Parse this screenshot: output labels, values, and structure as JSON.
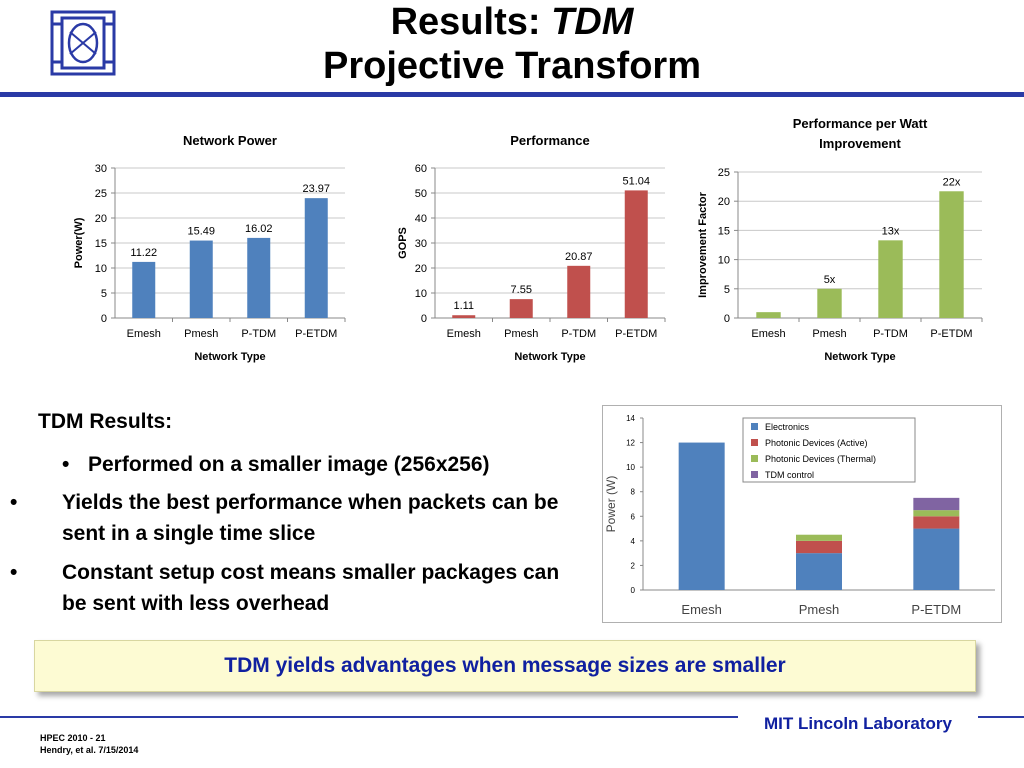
{
  "slide": {
    "title_prefix": "Results: ",
    "title_em": "TDM",
    "title_line2": "Projective Transform",
    "section_heading": "TDM Results:",
    "bullets": [
      "Performed on a smaller image (256x256)",
      "Yields the best performance when packets can be sent in a single time slice",
      "Constant setup cost means smaller packages can be sent with less overhead"
    ],
    "callout": "TDM yields advantages when message sizes are smaller",
    "footer_left_line1": "HPEC 2010 - 21",
    "footer_left_line2": "Hendry, et al. 7/15/2014",
    "footer_right": "MIT Lincoln Laboratory",
    "colors": {
      "accent": "#2a3aa6",
      "callout_text": "#1020a0",
      "callout_bg": "#fdfbd3"
    }
  },
  "chart_data": [
    {
      "type": "bar",
      "title": "Network Power",
      "xlabel": "Network Type",
      "ylabel": "Power(W)",
      "categories": [
        "Emesh",
        "Pmesh",
        "P-TDM",
        "P-ETDM"
      ],
      "values": [
        11.22,
        15.49,
        16.02,
        23.97
      ],
      "data_labels": [
        "11.22",
        "15.49",
        "16.02",
        "23.97"
      ],
      "ylim": [
        0,
        30
      ],
      "yticks": [
        0,
        5,
        10,
        15,
        20,
        25,
        30
      ],
      "color": "#4f81bd",
      "grid": true
    },
    {
      "type": "bar",
      "title": "Performance",
      "xlabel": "Network Type",
      "ylabel": "GOPS",
      "categories": [
        "Emesh",
        "Pmesh",
        "P-TDM",
        "P-ETDM"
      ],
      "values": [
        1.11,
        7.55,
        20.87,
        51.04
      ],
      "data_labels": [
        "1.11",
        "7.55",
        "20.87",
        "51.04"
      ],
      "ylim": [
        0,
        60
      ],
      "yticks": [
        0,
        10,
        20,
        30,
        40,
        50,
        60
      ],
      "color": "#c0504d",
      "grid": true
    },
    {
      "type": "bar",
      "title_lines": [
        "Performance per Watt",
        "Improvement"
      ],
      "xlabel": "Network Type",
      "ylabel": "Improvement Factor",
      "categories": [
        "Emesh",
        "Pmesh",
        "P-TDM",
        "P-ETDM"
      ],
      "values": [
        1,
        5,
        13.3,
        21.7
      ],
      "data_labels": [
        "",
        "5x",
        "13x",
        "22x"
      ],
      "ylim": [
        0,
        25
      ],
      "yticks": [
        0,
        5,
        10,
        15,
        20,
        25
      ],
      "color": "#9bbb59",
      "grid": true
    },
    {
      "type": "bar",
      "stacked": true,
      "ylabel": "Power (W)",
      "categories": [
        "Emesh",
        "Pmesh",
        "P-ETDM"
      ],
      "ylim": [
        0,
        14
      ],
      "yticks": [
        0,
        2,
        4,
        6,
        8,
        10,
        12,
        14
      ],
      "grid": false,
      "legend_position": "top-right",
      "series": [
        {
          "name": "Electronics",
          "color": "#4f81bd",
          "values": [
            12,
            3,
            5
          ]
        },
        {
          "name": "Photonic Devices (Active)",
          "color": "#c0504d",
          "values": [
            0,
            1,
            1
          ]
        },
        {
          "name": "Photonic Devices (Thermal)",
          "color": "#9bbb59",
          "values": [
            0,
            0.5,
            0.5
          ]
        },
        {
          "name": "TDM control",
          "color": "#8064a2",
          "values": [
            0,
            0,
            1
          ]
        }
      ]
    }
  ]
}
